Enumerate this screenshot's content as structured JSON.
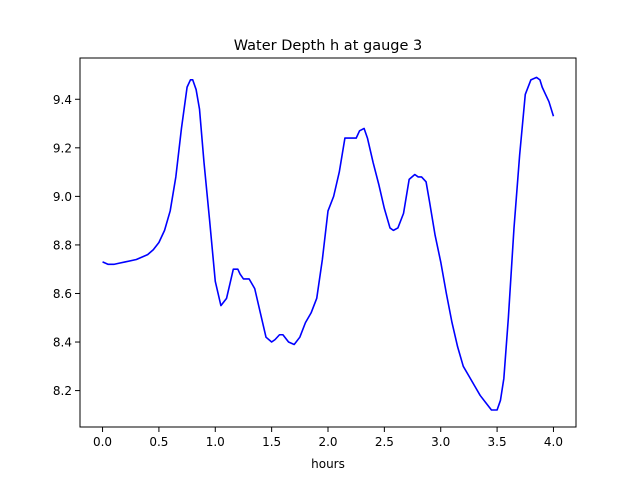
{
  "chart_data": {
    "type": "line",
    "title": "Water Depth h at gauge 3",
    "xlabel": "hours",
    "ylabel": "",
    "xlim": [
      -0.2,
      4.2
    ],
    "ylim": [
      8.05,
      9.57
    ],
    "x_ticks": [
      0.0,
      0.5,
      1.0,
      1.5,
      2.0,
      2.5,
      3.0,
      3.5,
      4.0
    ],
    "x_tick_labels": [
      "0.0",
      "0.5",
      "1.0",
      "1.5",
      "2.0",
      "2.5",
      "3.0",
      "3.5",
      "4.0"
    ],
    "y_ticks": [
      8.2,
      8.4,
      8.6,
      8.8,
      9.0,
      9.2,
      9.4
    ],
    "y_tick_labels": [
      "8.2",
      "8.4",
      "8.6",
      "8.8",
      "9.0",
      "9.2",
      "9.4"
    ],
    "grid": false,
    "series": [
      {
        "color": "#0000ff",
        "x": [
          0.0,
          0.05,
          0.1,
          0.15,
          0.2,
          0.3,
          0.4,
          0.45,
          0.5,
          0.55,
          0.6,
          0.65,
          0.7,
          0.75,
          0.78,
          0.8,
          0.83,
          0.86,
          0.9,
          0.95,
          1.0,
          1.05,
          1.1,
          1.13,
          1.16,
          1.2,
          1.22,
          1.25,
          1.3,
          1.35,
          1.4,
          1.45,
          1.5,
          1.53,
          1.57,
          1.6,
          1.65,
          1.7,
          1.75,
          1.8,
          1.85,
          1.9,
          1.95,
          2.0,
          2.05,
          2.1,
          2.15,
          2.2,
          2.25,
          2.28,
          2.32,
          2.35,
          2.4,
          2.45,
          2.5,
          2.55,
          2.58,
          2.62,
          2.67,
          2.72,
          2.77,
          2.8,
          2.83,
          2.87,
          2.9,
          2.95,
          3.0,
          3.05,
          3.1,
          3.15,
          3.2,
          3.25,
          3.3,
          3.35,
          3.4,
          3.45,
          3.5,
          3.53,
          3.56,
          3.6,
          3.65,
          3.7,
          3.75,
          3.8,
          3.85,
          3.88,
          3.9,
          3.93,
          3.96,
          4.0
        ],
        "values": [
          8.73,
          8.72,
          8.72,
          8.725,
          8.73,
          8.74,
          8.76,
          8.78,
          8.81,
          8.86,
          8.94,
          9.08,
          9.28,
          9.45,
          9.48,
          9.48,
          9.44,
          9.36,
          9.14,
          8.9,
          8.65,
          8.55,
          8.58,
          8.64,
          8.7,
          8.7,
          8.68,
          8.66,
          8.66,
          8.62,
          8.52,
          8.42,
          8.4,
          8.41,
          8.43,
          8.43,
          8.4,
          8.39,
          8.42,
          8.48,
          8.52,
          8.58,
          8.74,
          8.94,
          9.0,
          9.1,
          9.24,
          9.24,
          9.24,
          9.27,
          9.28,
          9.24,
          9.14,
          9.05,
          8.95,
          8.87,
          8.86,
          8.87,
          8.93,
          9.07,
          9.09,
          9.08,
          9.08,
          9.06,
          8.98,
          8.84,
          8.73,
          8.6,
          8.48,
          8.38,
          8.3,
          8.26,
          8.22,
          8.18,
          8.15,
          8.12,
          8.12,
          8.16,
          8.25,
          8.5,
          8.87,
          9.17,
          9.42,
          9.48,
          9.49,
          9.48,
          9.45,
          9.42,
          9.39,
          9.33
        ]
      }
    ]
  }
}
